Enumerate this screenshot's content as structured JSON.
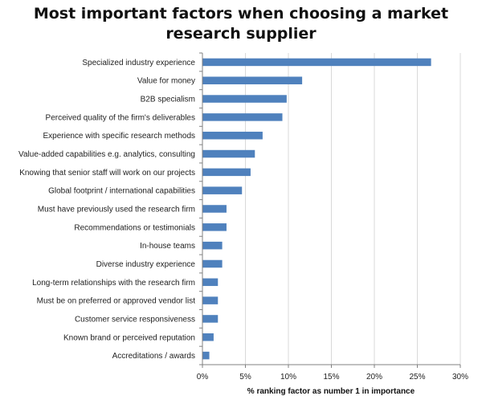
{
  "chart_data": {
    "type": "bar",
    "orientation": "horizontal",
    "title_lines": [
      "Most important factors when choosing a market",
      "research supplier"
    ],
    "xlabel": "% ranking factor as number 1 in importance",
    "ylabel": "",
    "xlim": [
      0,
      30
    ],
    "xticks": [
      0,
      5,
      10,
      15,
      20,
      25,
      30
    ],
    "tick_suffix": "%",
    "grid": true,
    "legend": "none",
    "bar_color": "#4f81bd",
    "categories": [
      "Specialized industry experience",
      "Value for money",
      "B2B specialism",
      "Perceived quality of the firm's deliverables",
      "Experience with specific research methods",
      "Value-added capabilities e.g. analytics, consulting",
      "Knowing that senior staff will work on our projects",
      "Global footprint / international capabilities",
      "Must have previously used the research firm",
      "Recommendations or testimonials",
      "In-house teams",
      "Diverse industry experience",
      "Long-term relationships with the research firm",
      "Must be on preferred or approved vendor list",
      "Customer service responsiveness",
      "Known brand or perceived reputation",
      "Accreditations / awards"
    ],
    "values": [
      26.6,
      11.6,
      9.8,
      9.3,
      7.0,
      6.1,
      5.6,
      4.6,
      2.8,
      2.8,
      2.3,
      2.3,
      1.8,
      1.8,
      1.8,
      1.3,
      0.8
    ]
  }
}
